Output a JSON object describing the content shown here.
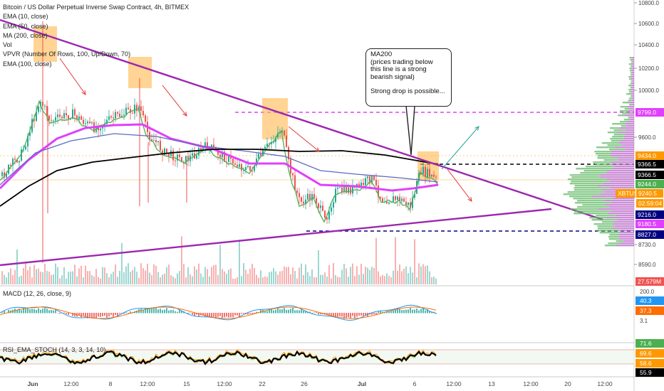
{
  "header": {
    "symbol_title": "Bitcoin / US Dollar Perpetual Inverse Swap Contract, 4h, BITMEX"
  },
  "indicators": [
    "EMA (10, close)",
    "EMA (50, close)",
    "MA (200, close)",
    "Vol",
    "VPVR (Number Of Rows, 100, Up/Down, 70)",
    "EMA (100, close)"
  ],
  "annotation": {
    "lines": [
      "MA200",
      "(prices trading below",
      "this line is a strong",
      "bearish signal)",
      "",
      "Strong drop is possible..."
    ]
  },
  "price_axis": {
    "ticks": [
      "10800.0",
      "10600.0",
      "10400.0",
      "10200.0",
      "10000.0",
      "9600.0",
      "8730.0",
      "8590.0"
    ],
    "labels": [
      {
        "text": "9799.0",
        "color": "#e040fb"
      },
      {
        "text": "9434.0",
        "color": "#ff9800"
      },
      {
        "text": "9366.5",
        "color": "#000000"
      },
      {
        "text": "9366.5",
        "color": "#000000"
      },
      {
        "text": "9244.0",
        "color": "#4caf50"
      },
      {
        "text": "XBTUSD",
        "color": "#ff9800"
      },
      {
        "text": "9240.5",
        "color": "#ff9800"
      },
      {
        "text": "02:59:04",
        "color": "#ff9800"
      },
      {
        "text": "9216.0",
        "color": "#000080"
      },
      {
        "text": "9180.5",
        "color": "#e040fb"
      },
      {
        "text": "8827.0",
        "color": "#000080"
      },
      {
        "text": "27.579M",
        "color": "#ef5350"
      }
    ]
  },
  "macd": {
    "label": "MACD (12, 26, close, 9)",
    "ticks": [
      "200.0",
      "3.1"
    ],
    "labels": [
      {
        "text": "40.3",
        "color": "#2196f3"
      },
      {
        "text": "37.3",
        "color": "#ff6d00"
      }
    ]
  },
  "stoch": {
    "label": "RSI_EMA_STOCH (14, 3, 3, 14, 10)",
    "labels": [
      {
        "text": "71.6",
        "color": "#4caf50"
      },
      {
        "text": "69.6",
        "color": "#ff9800"
      },
      {
        "text": "58.6",
        "color": "#ff9800"
      },
      {
        "text": "55.9",
        "color": "#000000"
      }
    ]
  },
  "time_axis": {
    "ticks": [
      "Jun",
      "12:00",
      "8",
      "12:00",
      "15",
      "12:00",
      "22",
      "26",
      "Jul",
      "6",
      "12:00",
      "13",
      "12:00",
      "20",
      "12:00"
    ]
  },
  "colors": {
    "up": "#26a69a",
    "down": "#ef5350",
    "trend": "#9c27b0",
    "ema10": "#4caf50",
    "ema50": "#e040fb",
    "ema100": "#5c6bc0",
    "ma200": "#000000",
    "highlight": "#ffb74d"
  }
}
